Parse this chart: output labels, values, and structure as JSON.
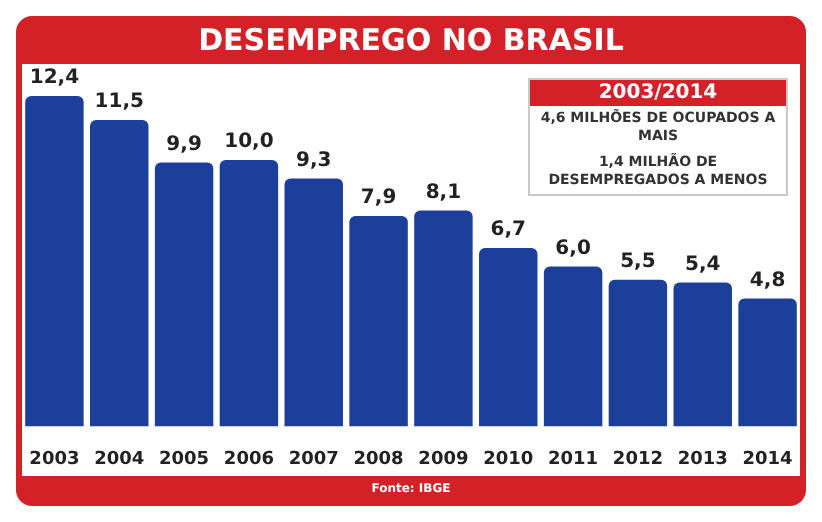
{
  "chart_data": {
    "type": "bar",
    "title": "DESEMPREGO NO BRASIL",
    "categories": [
      "2003",
      "2004",
      "2005",
      "2006",
      "2007",
      "2008",
      "2009",
      "2010",
      "2011",
      "2012",
      "2013",
      "2014"
    ],
    "values": [
      12.4,
      11.5,
      9.9,
      10.0,
      9.3,
      7.9,
      8.1,
      6.7,
      6.0,
      5.5,
      5.4,
      4.8
    ],
    "value_labels": [
      "12,4",
      "11,5",
      "9,9",
      "10,0",
      "9,3",
      "7,9",
      "8,1",
      "6,7",
      "6,0",
      "5,5",
      "5,4",
      "4,8"
    ],
    "color": "#1d3f9c",
    "annotations": [
      "2003/2014",
      "4,6 MILHÕES DE OCUPADOS A MAIS",
      "1,4 MILHÃO DE DESEMPREGADOS A MENOS",
      "Fonte: IBGE"
    ]
  }
}
